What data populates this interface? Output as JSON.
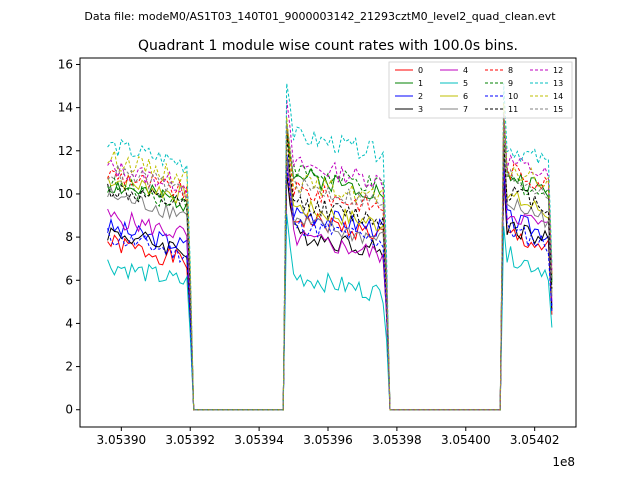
{
  "header": {
    "file_label": "Data file: modeM0/AS1T03_140T01_9000003142_21293cztM0_level2_quad_clean.evt",
    "title": "Quadrant 1 module wise count rates with 100.0s bins."
  },
  "chart_data": {
    "type": "line",
    "title": "Quadrant 1 module wise count rates with 100.0s bins.",
    "x_scale_label": "1e8",
    "xlim": [
      3.053888,
      3.054032
    ],
    "ylim": [
      -0.8,
      16.3
    ],
    "x_ticks": [
      {
        "value": 3.0539,
        "label": "3.05390"
      },
      {
        "value": 3.05392,
        "label": "3.05392"
      },
      {
        "value": 3.05394,
        "label": "3.05394"
      },
      {
        "value": 3.05396,
        "label": "3.05396"
      },
      {
        "value": 3.05398,
        "label": "3.05398"
      },
      {
        "value": 3.054,
        "label": "3.05400"
      },
      {
        "value": 3.05402,
        "label": "3.05402"
      }
    ],
    "y_ticks": [
      {
        "value": 0,
        "label": "0"
      },
      {
        "value": 2,
        "label": "2"
      },
      {
        "value": 4,
        "label": "4"
      },
      {
        "value": 6,
        "label": "6"
      },
      {
        "value": 8,
        "label": "8"
      },
      {
        "value": 10,
        "label": "10"
      },
      {
        "value": 12,
        "label": "12"
      },
      {
        "value": 14,
        "label": "14"
      },
      {
        "value": 16,
        "label": "16"
      }
    ],
    "segments": [
      {
        "start": 3.053896,
        "end": 3.05392
      },
      {
        "start": 3.053948,
        "end": 3.053977
      },
      {
        "start": 3.054011,
        "end": 3.054025
      }
    ],
    "gap_level": 0,
    "legend_position": "upper right",
    "series": [
      {
        "name": "0",
        "color": "#ff0000",
        "dash": "solid",
        "level1": 7.3,
        "level2": 8.5,
        "level3": 7.8,
        "peak": 10.5
      },
      {
        "name": "1",
        "color": "#008000",
        "dash": "solid",
        "level1": 10.0,
        "level2": 10.5,
        "level3": 10.5,
        "peak": 13.5
      },
      {
        "name": "2",
        "color": "#0000ff",
        "dash": "solid",
        "level1": 8.0,
        "level2": 8.8,
        "level3": 8.5,
        "peak": 12.0
      },
      {
        "name": "3",
        "color": "#000000",
        "dash": "solid",
        "level1": 7.8,
        "level2": 7.8,
        "level3": 8.2,
        "peak": 11.0
      },
      {
        "name": "4",
        "color": "#bf00bf",
        "dash": "solid",
        "level1": 8.5,
        "level2": 7.6,
        "level3": 8.8,
        "peak": 11.5
      },
      {
        "name": "5",
        "color": "#00bfbf",
        "dash": "solid",
        "level1": 6.3,
        "level2": 5.8,
        "level3": 6.8,
        "peak": 8.8
      },
      {
        "name": "6",
        "color": "#bfbf00",
        "dash": "solid",
        "level1": 10.3,
        "level2": 9.0,
        "level3": 9.5,
        "peak": 12.8
      },
      {
        "name": "7",
        "color": "#808080",
        "dash": "solid",
        "level1": 9.5,
        "level2": 8.3,
        "level3": 9.2,
        "peak": 12.0
      },
      {
        "name": "8",
        "color": "#ff0000",
        "dash": "dashed",
        "level1": 10.5,
        "level2": 9.8,
        "level3": 10.8,
        "peak": 13.2
      },
      {
        "name": "9",
        "color": "#008000",
        "dash": "dashed",
        "level1": 10.0,
        "level2": 10.7,
        "level3": 10.3,
        "peak": 13.0
      },
      {
        "name": "10",
        "color": "#0000ff",
        "dash": "dashed",
        "level1": 7.6,
        "level2": 8.2,
        "level3": 8.0,
        "peak": 11.2
      },
      {
        "name": "11",
        "color": "#000000",
        "dash": "dashed",
        "level1": 9.8,
        "level2": 9.2,
        "level3": 9.8,
        "peak": 12.5
      },
      {
        "name": "12",
        "color": "#bf00bf",
        "dash": "dashed",
        "level1": 10.8,
        "level2": 11.0,
        "level3": 11.2,
        "peak": 14.0
      },
      {
        "name": "13",
        "color": "#00bfbf",
        "dash": "dashed",
        "level1": 11.8,
        "level2": 12.3,
        "level3": 11.8,
        "peak": 15.5
      },
      {
        "name": "14",
        "color": "#bfbf00",
        "dash": "dashed",
        "level1": 11.2,
        "level2": 10.2,
        "level3": 10.8,
        "peak": 13.8
      },
      {
        "name": "15",
        "color": "#808080",
        "dash": "dashed",
        "level1": 10.6,
        "level2": 10.0,
        "level3": 10.5,
        "peak": 13.4
      }
    ]
  }
}
